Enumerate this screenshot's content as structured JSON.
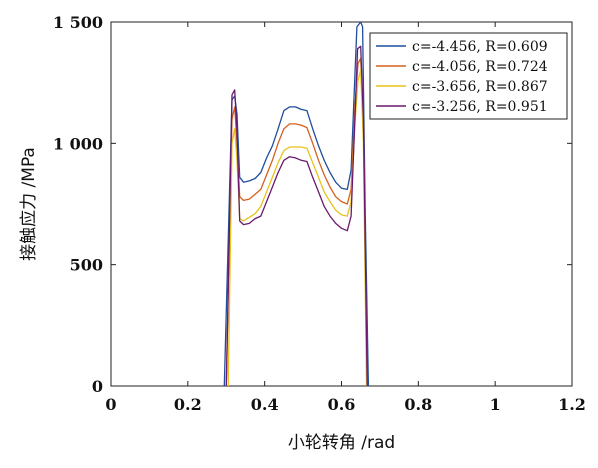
{
  "chart_data": {
    "type": "line",
    "xlabel": "小轮转角 /rad",
    "ylabel": "接触应力 /MPa",
    "xlim": [
      0,
      1.2
    ],
    "ylim": [
      0,
      1500
    ],
    "xticks": [
      0,
      0.2,
      0.4,
      0.6,
      0.8,
      1.0,
      1.2
    ],
    "xtick_labels": [
      "0",
      "0.2",
      "0.4",
      "0.6",
      "0.8",
      "1",
      "1.2"
    ],
    "yticks": [
      0,
      500,
      1000,
      1500
    ],
    "ytick_labels": [
      "0",
      "500",
      "1 000",
      "1 500"
    ],
    "grid": false,
    "legend_position": "top-right",
    "series": [
      {
        "name": "c=-4.456, R=0.609",
        "legend": {
          "c": "-4.456",
          "R": "0.609"
        },
        "color": "#1f4e9c",
        "x": [
          0.295,
          0.315,
          0.322,
          0.328,
          0.335,
          0.345,
          0.36,
          0.375,
          0.39,
          0.405,
          0.42,
          0.435,
          0.45,
          0.465,
          0.48,
          0.495,
          0.51,
          0.525,
          0.54,
          0.555,
          0.57,
          0.585,
          0.6,
          0.615,
          0.625,
          0.635,
          0.64,
          0.65,
          0.655,
          0.662,
          0.67
        ],
        "y": [
          0,
          1180,
          1195,
          1120,
          860,
          840,
          845,
          855,
          880,
          940,
          990,
          1060,
          1135,
          1150,
          1150,
          1140,
          1135,
          1060,
          990,
          930,
          880,
          840,
          815,
          810,
          890,
          1280,
          1480,
          1500,
          1480,
          700,
          0
        ]
      },
      {
        "name": "c=-4.056, R=0.724",
        "legend": {
          "c": "-4.056, R=0.724"
        },
        "color": "#d4601e",
        "x": [
          0.3,
          0.315,
          0.322,
          0.328,
          0.335,
          0.345,
          0.36,
          0.375,
          0.39,
          0.405,
          0.42,
          0.435,
          0.45,
          0.465,
          0.48,
          0.495,
          0.51,
          0.525,
          0.54,
          0.555,
          0.57,
          0.585,
          0.6,
          0.615,
          0.625,
          0.635,
          0.643,
          0.65,
          0.657,
          0.667
        ],
        "y": [
          0,
          1100,
          1150,
          1000,
          780,
          765,
          770,
          790,
          810,
          870,
          930,
          1000,
          1060,
          1080,
          1080,
          1075,
          1065,
          1000,
          930,
          870,
          820,
          780,
          760,
          750,
          810,
          1150,
          1330,
          1350,
          1100,
          0
        ]
      },
      {
        "name": "c=-3.656, R=0.867",
        "legend": {
          "c": "-3.656",
          "R": "0.867"
        },
        "color": "#e8c21a",
        "x": [
          0.305,
          0.315,
          0.322,
          0.328,
          0.335,
          0.345,
          0.36,
          0.375,
          0.39,
          0.405,
          0.42,
          0.435,
          0.45,
          0.465,
          0.48,
          0.495,
          0.51,
          0.525,
          0.54,
          0.555,
          0.57,
          0.585,
          0.6,
          0.615,
          0.625,
          0.635,
          0.643,
          0.65,
          0.657,
          0.665
        ],
        "y": [
          0,
          1000,
          1060,
          930,
          690,
          680,
          695,
          710,
          740,
          800,
          860,
          920,
          970,
          985,
          985,
          985,
          980,
          920,
          860,
          800,
          760,
          725,
          705,
          700,
          760,
          1080,
          1260,
          1300,
          1000,
          0
        ]
      },
      {
        "name": "c=-3.256, R=0.951",
        "legend": {
          "c": "-3.256",
          "R": "0.951"
        },
        "color": "#6a1a6e",
        "x": [
          0.3,
          0.315,
          0.322,
          0.328,
          0.335,
          0.345,
          0.36,
          0.375,
          0.39,
          0.405,
          0.42,
          0.435,
          0.45,
          0.465,
          0.48,
          0.495,
          0.51,
          0.525,
          0.54,
          0.555,
          0.57,
          0.585,
          0.6,
          0.615,
          0.625,
          0.635,
          0.642,
          0.65,
          0.657,
          0.667
        ],
        "y": [
          0,
          1200,
          1220,
          1050,
          680,
          665,
          670,
          690,
          700,
          760,
          820,
          880,
          930,
          945,
          940,
          930,
          925,
          860,
          800,
          740,
          700,
          670,
          650,
          640,
          700,
          1100,
          1390,
          1400,
          1100,
          0
        ]
      }
    ]
  }
}
